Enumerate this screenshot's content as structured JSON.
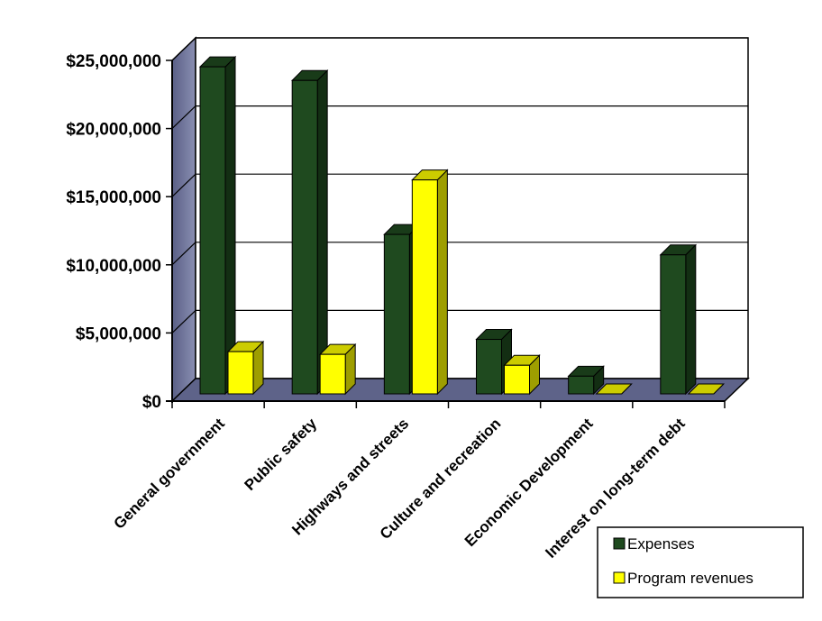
{
  "chart_data": {
    "type": "bar",
    "categories": [
      "General government",
      "Public safety",
      "Highways and  streets",
      "Culture and recreation",
      "Economic Development",
      "Interest on long-term debt"
    ],
    "series": [
      {
        "name": "Expenses",
        "color": "#1f4a1f",
        "values": [
          24000000,
          23000000,
          11700000,
          4000000,
          1300000,
          10200000
        ]
      },
      {
        "name": "Program revenues",
        "color": "#ffff00",
        "values": [
          3100000,
          2900000,
          15700000,
          2100000,
          0,
          0
        ]
      }
    ],
    "yticks": [
      "$0",
      "$5,000,000",
      "$10,000,000",
      "$15,000,000",
      "$20,000,000",
      "$25,000,000"
    ],
    "ylim": [
      0,
      25000000
    ],
    "grid": true,
    "legend_position": "bottom-right"
  }
}
